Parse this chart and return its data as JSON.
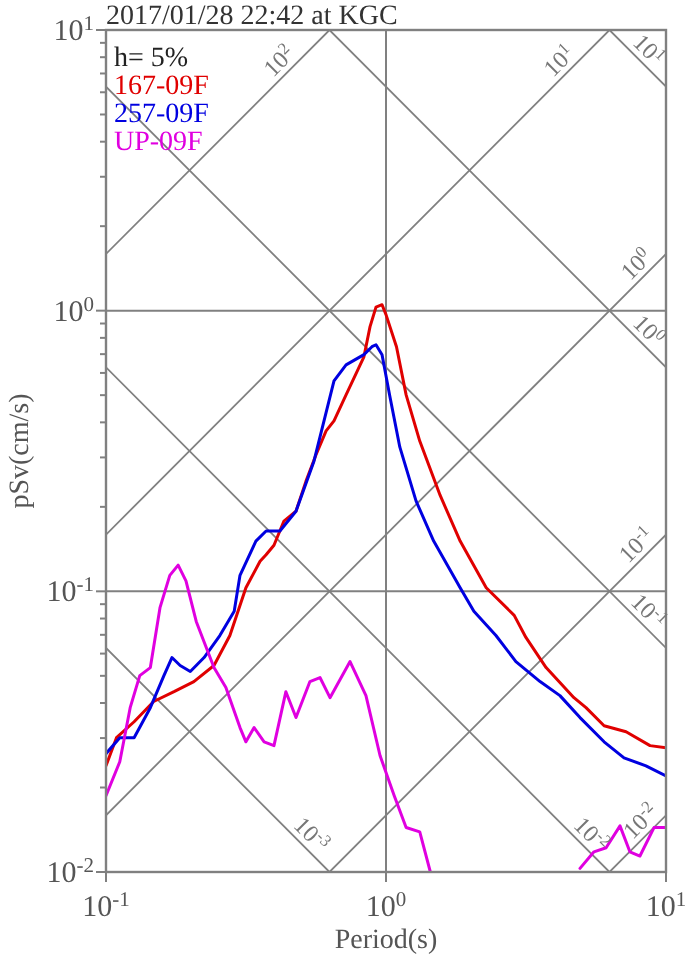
{
  "chart_data": {
    "type": "line",
    "title": "2017/01/28 22:42 at KGC",
    "xlabel": "Period(s)",
    "ylabel": "pSv(cm/s)",
    "log": "xy",
    "grid": true,
    "legend": "top left",
    "xlim": [
      0.1,
      10
    ],
    "ylim": [
      0.01,
      10
    ],
    "xticks": [
      {
        "value": 0.1,
        "label": "10$^{-1}$"
      },
      {
        "value": 1,
        "label": "10$^{0}$"
      },
      {
        "value": 10,
        "label": "10$^{1}$"
      }
    ],
    "yticks": [
      {
        "value": 0.01,
        "label": "10$^{-2}$"
      },
      {
        "value": 0.02,
        "label": null
      },
      {
        "value": 0.03,
        "label": null
      },
      {
        "value": 0.04,
        "label": null
      },
      {
        "value": 0.05,
        "label": null
      },
      {
        "value": 0.06,
        "label": null
      },
      {
        "value": 0.07,
        "label": null
      },
      {
        "value": 0.08,
        "label": null
      },
      {
        "value": 0.09,
        "label": null
      },
      {
        "value": 0.1,
        "label": "10$^{-1}$"
      },
      {
        "value": 0.2,
        "label": null
      },
      {
        "value": 0.3,
        "label": null
      },
      {
        "value": 0.4,
        "label": null
      },
      {
        "value": 0.5,
        "label": null
      },
      {
        "value": 0.6,
        "label": null
      },
      {
        "value": 0.7,
        "label": null
      },
      {
        "value": 0.8,
        "label": null
      },
      {
        "value": 0.9,
        "label": null
      },
      {
        "value": 1,
        "label": "10$^{0}$"
      },
      {
        "value": 2,
        "label": null
      },
      {
        "value": 3,
        "label": null
      },
      {
        "value": 4,
        "label": null
      },
      {
        "value": 5,
        "label": null
      },
      {
        "value": 6,
        "label": null
      },
      {
        "value": 7,
        "label": null
      },
      {
        "value": 8,
        "label": null
      },
      {
        "value": 9,
        "label": null
      },
      {
        "value": 10,
        "label": "10$^{1}$"
      }
    ],
    "annotations": [
      "h= 5%",
      {
        "text": "10$^{2}$",
        "x": 0.45,
        "y": 7.16
      },
      {
        "text": "10$^{1}$",
        "x": 4.5,
        "y": 7.16
      },
      {
        "text": "10$^{1}$",
        "x": 8,
        "y": 7.85
      },
      {
        "text": "10$^{0}$",
        "x": 8.5,
        "y": 1.35
      },
      {
        "text": "10$^{0}$",
        "x": 8,
        "y": 0.785
      },
      {
        "text": "10$^{-1}$",
        "x": 8.5,
        "y": 0.135
      },
      {
        "text": "10$^{-1}$",
        "x": 8,
        "y": 0.0785
      },
      {
        "text": "10$^{-2}$",
        "x": 8.8,
        "y": 0.014
      },
      {
        "text": "10$^{-2}$",
        "x": 5,
        "y": 0.01257
      },
      {
        "text": "10$^{-3}$",
        "x": 0.5,
        "y": 0.01257
      }
    ],
    "series": [
      {
        "name": "167-09F",
        "color": "#e00000",
        "x": [
          0.1,
          0.109,
          0.126,
          0.148,
          0.175,
          0.206,
          0.243,
          0.277,
          0.316,
          0.355,
          0.373,
          0.398,
          0.432,
          0.477,
          0.518,
          0.562,
          0.611,
          0.652,
          0.72,
          0.834,
          0.877,
          0.921,
          0.968,
          1,
          1.09,
          1.18,
          1.32,
          1.56,
          1.84,
          2.28,
          2.87,
          3.16,
          3.73,
          4.69,
          5.18,
          6.01,
          7.2,
          8.77,
          10
        ],
        "values": [
          0.0239,
          0.0301,
          0.0343,
          0.0405,
          0.0439,
          0.0477,
          0.0544,
          0.0696,
          0.103,
          0.128,
          0.135,
          0.146,
          0.178,
          0.193,
          0.247,
          0.306,
          0.373,
          0.405,
          0.501,
          0.685,
          0.877,
          1.03,
          1.05,
          0.968,
          0.744,
          0.501,
          0.343,
          0.22,
          0.151,
          0.103,
          0.0821,
          0.0685,
          0.0535,
          0.0418,
          0.0385,
          0.0332,
          0.0316,
          0.0282,
          0.0277
        ]
      },
      {
        "name": "257-09F",
        "color": "#0000e0",
        "x": [
          0.1,
          0.112,
          0.126,
          0.144,
          0.161,
          0.172,
          0.184,
          0.2,
          0.224,
          0.255,
          0.287,
          0.301,
          0.343,
          0.373,
          0.418,
          0.477,
          0.553,
          0.652,
          0.72,
          0.834,
          0.891,
          0.921,
          0.968,
          1.03,
          1.12,
          1.28,
          1.48,
          1.84,
          2.06,
          2.47,
          2.91,
          3.55,
          4.18,
          4.93,
          6.01,
          7.08,
          8.48,
          10
        ],
        "values": [
          0.0264,
          0.0301,
          0.0301,
          0.0385,
          0.0501,
          0.0581,
          0.0544,
          0.0518,
          0.0581,
          0.0696,
          0.0849,
          0.114,
          0.151,
          0.164,
          0.164,
          0.193,
          0.291,
          0.562,
          0.641,
          0.697,
          0.744,
          0.756,
          0.697,
          0.501,
          0.327,
          0.21,
          0.151,
          0.103,
          0.0849,
          0.0696,
          0.0562,
          0.0477,
          0.0425,
          0.0355,
          0.0291,
          0.0255,
          0.0239,
          0.022
        ]
      },
      {
        "name": "UP-09F",
        "color": "#e000e0",
        "x": [
          0.1,
          0.112,
          0.122,
          0.132,
          0.144,
          0.156,
          0.169,
          0.181,
          0.193,
          0.21,
          0.243,
          0.268,
          0.301,
          0.316,
          0.338,
          0.367,
          0.398,
          0.439,
          0.477,
          0.535,
          0.581,
          0.631,
          0.744,
          0.848,
          0.952,
          1.07,
          1.18,
          1.32,
          1.44,
          2.5,
          4.93,
          5.53,
          6.11,
          6.85,
          7.43,
          8.07,
          9.06,
          10
        ],
        "values": [
          0.0187,
          0.0247,
          0.0385,
          0.0501,
          0.0535,
          0.0877,
          0.114,
          0.124,
          0.109,
          0.0781,
          0.0535,
          0.0454,
          0.0327,
          0.0291,
          0.0327,
          0.0291,
          0.0282,
          0.0439,
          0.0355,
          0.0477,
          0.0493,
          0.0418,
          0.0562,
          0.0425,
          0.026,
          0.0187,
          0.0144,
          0.0139,
          0.01,
          null,
          0.0103,
          0.0118,
          0.0122,
          0.0146,
          0.0118,
          0.0114,
          0.0144,
          0.0144
        ]
      },
      {
        "color": "#808080",
        "x": [
          0.1,
          0.6283
        ],
        "values": [
          1.592,
          10
        ]
      },
      {
        "color": "#808080",
        "x": [
          0.1,
          6.283
        ],
        "values": [
          0.1592,
          10
        ]
      },
      {
        "color": "#808080",
        "x": [
          0.1,
          10
        ],
        "values": [
          0.01592,
          1.592
        ]
      },
      {
        "color": "#808080",
        "x": [
          0.6283,
          10
        ],
        "values": [
          0.01,
          0.1592
        ]
      },
      {
        "color": "#808080",
        "x": [
          6.283,
          10
        ],
        "values": [
          0.01,
          0.01592
        ]
      },
      {
        "color": "#808080",
        "x": [
          6.283,
          10
        ],
        "values": [
          10,
          6.283
        ]
      },
      {
        "color": "#808080",
        "x": [
          0.6283,
          10
        ],
        "values": [
          10,
          0.6283
        ]
      },
      {
        "color": "#808080",
        "x": [
          0.1,
          10
        ],
        "values": [
          6.283,
          0.06283
        ]
      },
      {
        "color": "#808080",
        "x": [
          0.1,
          6.283
        ],
        "values": [
          0.6283,
          0.01
        ]
      },
      {
        "color": "#808080",
        "x": [
          0.1,
          0.6283
        ],
        "values": [
          0.06283,
          0.01
        ]
      }
    ]
  }
}
